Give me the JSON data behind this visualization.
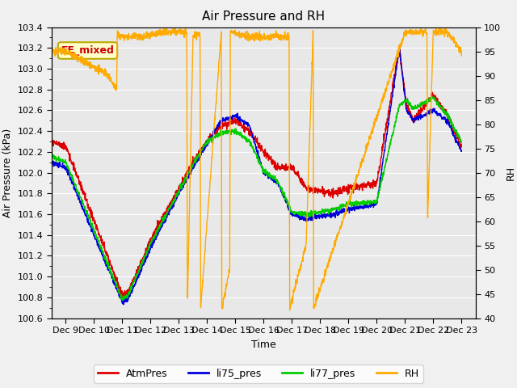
{
  "title": "Air Pressure and RH",
  "ylabel_left": "Air Pressure (kPa)",
  "ylabel_right": "RH",
  "xlabel": "Time",
  "y_left_min": 100.6,
  "y_left_max": 103.4,
  "y_right_min": 40,
  "y_right_max": 100,
  "annotation": "EE_mixed",
  "legend_labels": [
    "AtmPres",
    "li75_pres",
    "li77_pres",
    "RH"
  ],
  "colors": {
    "atmpres": "#dd0000",
    "li75": "#0000dd",
    "li77": "#00cc00",
    "rh": "#ffaa00",
    "fig_bg": "#f0f0f0",
    "ax_bg": "#e8e8e8",
    "grid": "#ffffff",
    "annotation_face": "#ffffcc",
    "annotation_edge": "#bbaa00",
    "annotation_text": "#cc0000"
  },
  "x_tick_positions": [
    1,
    2,
    3,
    4,
    5,
    6,
    7,
    8,
    9,
    10,
    11,
    12,
    13,
    14,
    15
  ],
  "x_tick_labels": [
    "Dec 9",
    "Dec 10",
    "Dec 11",
    "Dec 12",
    "Dec 13",
    "Dec 14",
    "Dec 15",
    "Dec 16",
    "Dec 17",
    "Dec 18",
    "Dec 19",
    "Dec 20",
    "Dec 21",
    "Dec 22",
    "Dec 23"
  ],
  "x_lim": [
    0.5,
    15.5
  ],
  "linewidth": 1.0,
  "title_fontsize": 11,
  "axis_label_fontsize": 9,
  "tick_fontsize": 8,
  "legend_fontsize": 9
}
